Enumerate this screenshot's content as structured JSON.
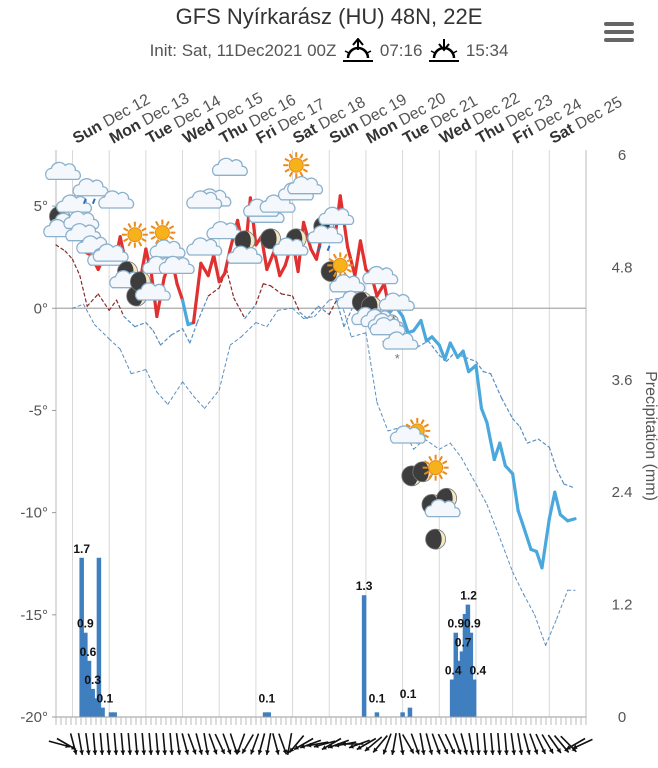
{
  "header": {
    "title": "GFS Nyírkarász (HU) 48N, 22E",
    "init_label": "Init: Sat, 11Dec2021 00Z",
    "sunrise": "07:16",
    "sunset": "15:34"
  },
  "colors": {
    "temp_warm": "#e03030",
    "temp_cold": "#4aa8dc",
    "dew_warm": "#8b2a2a",
    "dew_cold": "#5a8fc0",
    "precip_bar": "#3f7fbf",
    "grid": "#d8d8d8",
    "zero_line": "#aaaaaa"
  },
  "chart_data": {
    "type": "line",
    "title": "GFS Nyírkarász (HU) 48N, 22E",
    "days": [
      {
        "dow": "Sun",
        "date": "Dec 12"
      },
      {
        "dow": "Mon",
        "date": "Dec 13"
      },
      {
        "dow": "Tue",
        "date": "Dec 14"
      },
      {
        "dow": "Wed",
        "date": "Dec 15"
      },
      {
        "dow": "Thu",
        "date": "Dec 16"
      },
      {
        "dow": "Fri",
        "date": "Dec 17"
      },
      {
        "dow": "Sat",
        "date": "Dec 18"
      },
      {
        "dow": "Sun",
        "date": "Dec 19"
      },
      {
        "dow": "Mon",
        "date": "Dec 20"
      },
      {
        "dow": "Tue",
        "date": "Dec 21"
      },
      {
        "dow": "Wed",
        "date": "Dec 22"
      },
      {
        "dow": "Thu",
        "date": "Dec 23"
      },
      {
        "dow": "Fri",
        "date": "Dec 24"
      },
      {
        "dow": "Sat",
        "date": "Dec 25"
      }
    ],
    "x_range_days": [
      -0.45,
      14.0
    ],
    "y_left": {
      "label": "",
      "ticks": [
        "5°",
        "0°",
        "-5°",
        "-10°",
        "-15°",
        "-20°"
      ],
      "tick_values": [
        5,
        0,
        -5,
        -10,
        -15,
        -20
      ],
      "ylim": [
        -20,
        7.5
      ]
    },
    "y_right": {
      "label": "Precipitation (mm)",
      "ticks": [
        "6",
        "4.8",
        "3.6",
        "2.4",
        "1.2",
        "0"
      ],
      "tick_values": [
        6,
        4.8,
        3.6,
        2.4,
        1.2,
        0
      ],
      "ylim": [
        0,
        6
      ]
    },
    "temperature": {
      "t": [
        -0.45,
        -0.25,
        0,
        0.15,
        0.3,
        0.5,
        0.7,
        0.85,
        1,
        1.15,
        1.3,
        1.5,
        1.65,
        1.8,
        2,
        2.15,
        2.3,
        2.5,
        2.7,
        2.85,
        3,
        3.15,
        3.3,
        3.5,
        3.7,
        3.85,
        4,
        4.15,
        4.3,
        4.5,
        4.7,
        4.85,
        5,
        5.15,
        5.3,
        5.5,
        5.65,
        5.8,
        6,
        6.15,
        6.3,
        6.5,
        6.65,
        6.8,
        7,
        7.15,
        7.3,
        7.5,
        7.7,
        7.85,
        8,
        8.15,
        8.3,
        8.5,
        8.65,
        8.8,
        9,
        9.15,
        9.3,
        9.5,
        9.65,
        9.8,
        10,
        10.15,
        10.3,
        10.5,
        10.65,
        10.8,
        11,
        11.15,
        11.3,
        11.5,
        11.65,
        11.8,
        12,
        12.15,
        12.3,
        12.5,
        12.65,
        12.8,
        13,
        13.15,
        13.3,
        13.5,
        13.7
      ],
      "values": [
        4.0,
        4.6,
        3.6,
        4.9,
        2.8,
        2.6,
        1.9,
        2.5,
        3.0,
        2.2,
        3.5,
        1.8,
        1.5,
        0.9,
        2.9,
        1.7,
        -0.4,
        1.5,
        2.5,
        1.2,
        0.4,
        -0.8,
        -0.7,
        2.2,
        1.6,
        2.6,
        1.3,
        1.7,
        2.9,
        4.3,
        2.6,
        5.4,
        3.1,
        3.5,
        1.9,
        2.8,
        1.6,
        2.1,
        3.3,
        1.8,
        4.2,
        2.9,
        2.4,
        3.6,
        4.2,
        3.4,
        5.5,
        3.0,
        1.6,
        3.3,
        1.9,
        1.6,
        0.6,
        1.2,
        -0.2,
        0.1,
        -0.4,
        -1.2,
        -1.1,
        -0.6,
        -1.6,
        -1.4,
        -1.8,
        -2.5,
        -1.7,
        -2.4,
        -2.1,
        -3.1,
        -2.8,
        -4.9,
        -5.6,
        -7.4,
        -6.6,
        -7.7,
        -8.1,
        -9.9,
        -10.7,
        -11.8,
        -11.9,
        -12.7,
        -10.3,
        -9.0,
        -10.1,
        -10.4,
        -10.3
      ]
    },
    "dewpoint": {
      "t": [
        -0.45,
        -0.2,
        0,
        0.2,
        0.4,
        0.7,
        1,
        1.2,
        1.4,
        1.7,
        2,
        2.2,
        2.4,
        2.7,
        3,
        3.2,
        3.4,
        3.7,
        4,
        4.2,
        4.4,
        4.7,
        5,
        5.2,
        5.4,
        5.7,
        6,
        6.2,
        6.4,
        6.7,
        7,
        7.2,
        7.4,
        7.7,
        8,
        8.2,
        8.4,
        8.7,
        9,
        9.2,
        9.4,
        9.7,
        10,
        10.2,
        10.4,
        10.7,
        11,
        11.2,
        11.4,
        11.7,
        12,
        12.2,
        12.4,
        12.7,
        13,
        13.2,
        13.4,
        13.7
      ],
      "values": [
        3.1,
        2.8,
        2.4,
        1.6,
        0.1,
        0.7,
        -0.1,
        0.4,
        -0.4,
        -0.9,
        -0.7,
        -1.1,
        -1.8,
        -1.3,
        -1.0,
        -1.7,
        -0.7,
        0.6,
        1.0,
        1.9,
        0.5,
        -0.5,
        0.2,
        1.2,
        1.1,
        0.7,
        0.6,
        -0.2,
        -0.5,
        0.1,
        -0.3,
        0.4,
        -0.9,
        0.3,
        -0.4,
        -0.6,
        -1.1,
        -1.2,
        -0.8,
        -1.5,
        -1.9,
        -1.6,
        -2.3,
        -2.6,
        -2.2,
        -2.4,
        -2.6,
        -3.1,
        -3.2,
        -4.4,
        -5.4,
        -5.8,
        -6.6,
        -6.4,
        -6.8,
        -7.9,
        -8.6,
        -8.8
      ]
    },
    "dew_low": {
      "t": [
        0,
        0.3,
        0.6,
        1,
        1.3,
        1.6,
        2,
        2.3,
        2.6,
        3,
        3.3,
        3.6,
        4,
        4.3,
        4.6,
        5,
        5.3,
        5.6,
        6,
        6.3,
        6.6,
        7,
        7.3,
        7.6,
        8,
        8.3,
        8.6,
        9,
        9.3,
        9.6,
        10,
        10.3,
        10.6,
        11,
        11.3,
        11.6,
        12,
        12.3,
        12.6,
        12.9,
        13.2,
        13.5,
        13.7
      ],
      "values": [
        0.0,
        0.2,
        -0.8,
        -1.5,
        -2.0,
        -3.2,
        -3.0,
        -4.1,
        -4.7,
        -3.6,
        -4.3,
        -4.9,
        -4.0,
        -1.8,
        -1.4,
        -0.7,
        -0.9,
        -0.1,
        0.0,
        -0.5,
        -0.4,
        0.4,
        0.5,
        -1.4,
        -1.2,
        -4.6,
        -6.0,
        -5.8,
        -6.9,
        -6.4,
        -6.9,
        -6.6,
        -7.3,
        -8.6,
        -9.6,
        -11.0,
        -12.9,
        -14.0,
        -15.0,
        -16.5,
        -15.2,
        -13.8,
        -13.8
      ]
    },
    "precipitation": [
      {
        "t": 0.25,
        "v": 1.7
      },
      {
        "t": 0.35,
        "v": 0.9
      },
      {
        "t": 0.45,
        "v": 0.6
      },
      {
        "t": 0.55,
        "v": 0.3
      },
      {
        "t": 0.62,
        "v": 0.2
      },
      {
        "t": 0.72,
        "v": 1.7
      },
      {
        "t": 0.82,
        "v": 0.1
      },
      {
        "t": 1.05,
        "v": 0.05
      },
      {
        "t": 1.15,
        "v": 0.05
      },
      {
        "t": 5.25,
        "v": 0.05
      },
      {
        "t": 5.35,
        "v": 0.05
      },
      {
        "t": 7.95,
        "v": 1.3
      },
      {
        "t": 8.3,
        "v": 0.05
      },
      {
        "t": 9.0,
        "v": 0.05
      },
      {
        "t": 9.2,
        "v": 0.1
      },
      {
        "t": 10.35,
        "v": 0.4
      },
      {
        "t": 10.45,
        "v": 0.9
      },
      {
        "t": 10.55,
        "v": 0.6
      },
      {
        "t": 10.62,
        "v": 0.7
      },
      {
        "t": 10.7,
        "v": 1.1
      },
      {
        "t": 10.78,
        "v": 1.2
      },
      {
        "t": 10.86,
        "v": 0.9
      },
      {
        "t": 10.95,
        "v": 0.4
      }
    ],
    "precip_labels": [
      {
        "t": 0.25,
        "v": 1.7,
        "text": "1.7"
      },
      {
        "t": 0.35,
        "v": 0.9,
        "text": "0.9"
      },
      {
        "t": 0.42,
        "v": 0.6,
        "text": "0.6"
      },
      {
        "t": 0.55,
        "v": 0.3,
        "text": "0.3"
      },
      {
        "t": 0.88,
        "v": 0.1,
        "text": "0.1"
      },
      {
        "t": 5.3,
        "v": 0.1,
        "text": "0.1"
      },
      {
        "t": 7.95,
        "v": 1.3,
        "text": "1.3"
      },
      {
        "t": 8.3,
        "v": 0.1,
        "text": "0.1"
      },
      {
        "t": 9.15,
        "v": 0.15,
        "text": "0.1"
      },
      {
        "t": 10.38,
        "v": 0.4,
        "text": "0.4"
      },
      {
        "t": 10.45,
        "v": 0.9,
        "text": "0.9"
      },
      {
        "t": 10.65,
        "v": 0.7,
        "text": "0.7"
      },
      {
        "t": 10.8,
        "v": 1.2,
        "text": "1.2"
      },
      {
        "t": 10.9,
        "v": 0.9,
        "text": "0.9"
      },
      {
        "t": 11.05,
        "v": 0.4,
        "text": "0.4"
      }
    ],
    "weather_icons": [
      {
        "t": -0.25,
        "v": 6.6,
        "kind": "cloud"
      },
      {
        "t": -0.3,
        "v": 4.4,
        "kind": "moon-cloud"
      },
      {
        "t": -0.3,
        "v": 3.8,
        "kind": "cloud"
      },
      {
        "t": 0.05,
        "v": 5.0,
        "kind": "cloud"
      },
      {
        "t": 0.25,
        "v": 4.2,
        "kind": "rain"
      },
      {
        "t": 0.5,
        "v": 5.8,
        "kind": "rain"
      },
      {
        "t": 0.3,
        "v": 3.6,
        "kind": "cloud"
      },
      {
        "t": 0.6,
        "v": 3.0,
        "kind": "cloud"
      },
      {
        "t": 0.9,
        "v": 2.4,
        "kind": "cloud"
      },
      {
        "t": 1.2,
        "v": 5.2,
        "kind": "cloud"
      },
      {
        "t": 1.05,
        "v": 2.6,
        "kind": "cloud"
      },
      {
        "t": 1.7,
        "v": 3.6,
        "kind": "sun"
      },
      {
        "t": 1.5,
        "v": 1.8,
        "kind": "moon"
      },
      {
        "t": 1.5,
        "v": 1.3,
        "kind": "cloud"
      },
      {
        "t": 1.75,
        "v": 0.6,
        "kind": "moon"
      },
      {
        "t": 1.85,
        "v": 1.3,
        "kind": "moon"
      },
      {
        "t": 2.2,
        "v": 0.7,
        "kind": "cloud"
      },
      {
        "t": 2.45,
        "v": 3.7,
        "kind": "sun"
      },
      {
        "t": 2.6,
        "v": 2.8,
        "kind": "cloud"
      },
      {
        "t": 2.4,
        "v": 2.0,
        "kind": "cloud"
      },
      {
        "t": 2.85,
        "v": 2.0,
        "kind": "cloud"
      },
      {
        "t": 3.6,
        "v": 2.9,
        "kind": "cloud"
      },
      {
        "t": 3.85,
        "v": 5.3,
        "kind": "cloud"
      },
      {
        "t": 3.6,
        "v": 5.2,
        "kind": "cloud"
      },
      {
        "t": 4.3,
        "v": 6.8,
        "kind": "cloud"
      },
      {
        "t": 4.15,
        "v": 3.7,
        "kind": "cloud"
      },
      {
        "t": 4.7,
        "v": 3.3,
        "kind": "moon"
      },
      {
        "t": 4.7,
        "v": 2.5,
        "kind": "cloud"
      },
      {
        "t": 5.3,
        "v": 4.5,
        "kind": "cloud"
      },
      {
        "t": 5.15,
        "v": 4.8,
        "kind": "cloud"
      },
      {
        "t": 5.4,
        "v": 3.4,
        "kind": "moon"
      },
      {
        "t": 5.6,
        "v": 5.0,
        "kind": "cloud"
      },
      {
        "t": 6.1,
        "v": 7.0,
        "kind": "sun"
      },
      {
        "t": 6.1,
        "v": 3.4,
        "kind": "moon"
      },
      {
        "t": 5.95,
        "v": 2.9,
        "kind": "cloud"
      },
      {
        "t": 6.1,
        "v": 5.6,
        "kind": "cloud"
      },
      {
        "t": 6.35,
        "v": 5.9,
        "kind": "cloud"
      },
      {
        "t": 6.85,
        "v": 4.0,
        "kind": "moon"
      },
      {
        "t": 6.9,
        "v": 3.5,
        "kind": "rain"
      },
      {
        "t": 7.2,
        "v": 4.4,
        "kind": "cloud"
      },
      {
        "t": 7.05,
        "v": 1.8,
        "kind": "moon"
      },
      {
        "t": 7.3,
        "v": 2.1,
        "kind": "sun"
      },
      {
        "t": 7.5,
        "v": 1.1,
        "kind": "cloud"
      },
      {
        "t": 7.7,
        "v": 0.3,
        "kind": "cloud"
      },
      {
        "t": 7.9,
        "v": 0.3,
        "kind": "moon"
      },
      {
        "t": 8.15,
        "v": 0.1,
        "kind": "moon"
      },
      {
        "t": 8.4,
        "v": 1.5,
        "kind": "cloud"
      },
      {
        "t": 8.1,
        "v": -0.5,
        "kind": "cloud"
      },
      {
        "t": 8.35,
        "v": -0.6,
        "kind": "cloud"
      },
      {
        "t": 8.55,
        "v": -0.8,
        "kind": "cloud"
      },
      {
        "t": 8.85,
        "v": 0.2,
        "kind": "snow"
      },
      {
        "t": 8.6,
        "v": -1.0,
        "kind": "snow"
      },
      {
        "t": 8.95,
        "v": -1.7,
        "kind": "snow"
      },
      {
        "t": 9.4,
        "v": -6.0,
        "kind": "sun"
      },
      {
        "t": 9.15,
        "v": -6.3,
        "kind": "cloud"
      },
      {
        "t": 9.25,
        "v": -8.2,
        "kind": "moon"
      },
      {
        "t": 9.55,
        "v": -8.0,
        "kind": "moon"
      },
      {
        "t": 9.9,
        "v": -7.8,
        "kind": "sun"
      },
      {
        "t": 9.8,
        "v": -9.6,
        "kind": "moon"
      },
      {
        "t": 9.9,
        "v": -11.3,
        "kind": "moon"
      },
      {
        "t": 10.2,
        "v": -9.3,
        "kind": "moon"
      },
      {
        "t": 10.1,
        "v": -9.9,
        "kind": "cloud"
      }
    ]
  }
}
